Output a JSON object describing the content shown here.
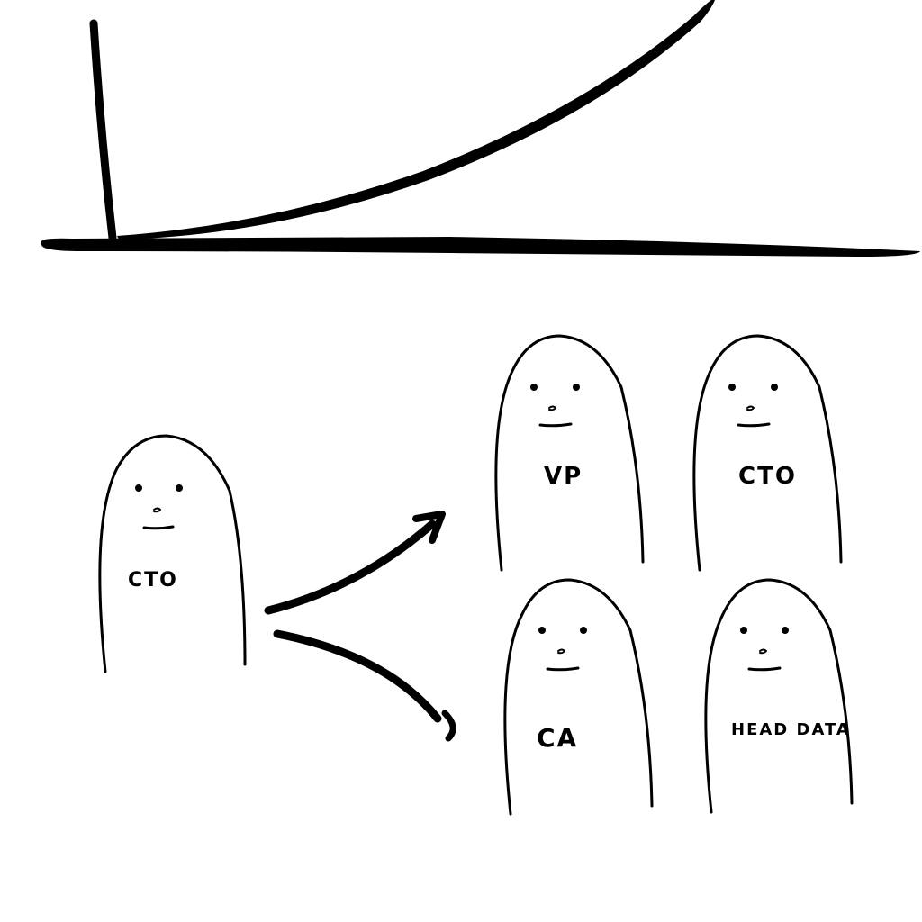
{
  "colors": {
    "ink": "#000000",
    "paper": "#ffffff"
  },
  "growth_curve": {
    "title": "",
    "xlabel": "",
    "ylabel": "",
    "shape": "exponential"
  },
  "source_person": {
    "label": "CTO"
  },
  "role_people": [
    {
      "label": "VP"
    },
    {
      "label": "CTO"
    },
    {
      "label": "CA"
    },
    {
      "label": "HEAD DATA"
    }
  ],
  "arrows": [
    {
      "from": "CTO",
      "to": "VP"
    },
    {
      "from": "CTO",
      "to": "CA"
    }
  ]
}
